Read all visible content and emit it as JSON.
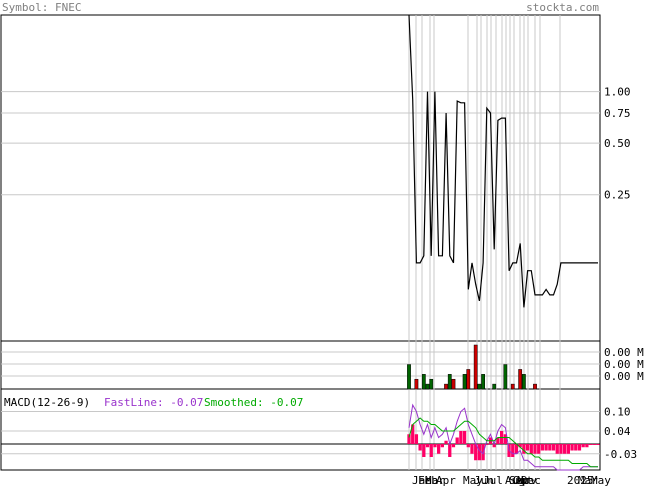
{
  "header": {
    "symbol_label": "Symbol: FNEC",
    "site": "stockta.com"
  },
  "colors": {
    "header_text": "#7f7f7f",
    "price_line": "#000000",
    "grid": "#c8c8c8",
    "frame": "#000000",
    "vol_up": "#006400",
    "vol_down": "#cc0000",
    "macd_fast": "#9933cc",
    "macd_smooth": "#00aa00",
    "macd_hist": "#ff0066",
    "axis_text": "#000000"
  },
  "chart_data": [
    {
      "type": "line",
      "panel": "price",
      "scale": "log",
      "ylim": [
        0.035,
        2.8
      ],
      "y_ticks": [
        1.0,
        0.75,
        0.5,
        0.25
      ],
      "y_tick_labels": [
        "1.00",
        "0.75",
        "0.50",
        "0.25"
      ],
      "x_tick_labels": [
        "Jan",
        "Feb",
        "Mar",
        "Apr",
        "May",
        "Jun",
        "Jul",
        "Aug",
        "Sep",
        "Oct",
        "Nov",
        "Dec",
        "2025",
        "Mar",
        "May"
      ],
      "x": [
        0,
        1,
        2,
        3,
        4,
        5,
        6,
        7,
        8,
        9,
        10,
        11,
        12,
        13,
        14,
        15,
        16,
        17,
        18,
        19,
        20,
        21,
        22,
        23,
        24,
        25,
        26,
        27,
        28,
        29,
        30,
        31,
        32,
        33,
        34,
        35,
        36,
        37,
        38,
        39,
        40,
        41,
        42,
        43,
        44,
        45,
        46,
        47,
        48,
        49,
        50,
        51
      ],
      "values": [
        2.8,
        0.9,
        0.1,
        0.1,
        0.11,
        1.0,
        0.11,
        1.0,
        0.11,
        0.11,
        0.75,
        0.11,
        0.1,
        0.88,
        0.86,
        0.86,
        0.07,
        0.1,
        0.075,
        0.06,
        0.1,
        0.8,
        0.75,
        0.12,
        0.68,
        0.7,
        0.7,
        0.09,
        0.1,
        0.1,
        0.13,
        0.055,
        0.09,
        0.09,
        0.065,
        0.065,
        0.065,
        0.07,
        0.065,
        0.065,
        0.075,
        0.1,
        0.1,
        0.1,
        0.1,
        0.1,
        0.1,
        0.1,
        0.1,
        0.1,
        0.1,
        0.1
      ]
    },
    {
      "type": "bar",
      "panel": "volume",
      "y_tick_labels": [
        "0.00 M",
        "0.00 M",
        "0.00 M"
      ],
      "values": [
        5,
        0,
        2,
        0,
        3,
        1,
        2,
        0,
        0,
        0,
        1,
        3,
        2,
        0,
        0,
        3,
        4,
        0,
        9,
        1,
        3,
        0,
        0,
        1,
        0,
        0,
        5,
        0,
        1,
        0,
        4,
        3,
        0,
        0,
        1,
        0,
        0,
        0,
        0,
        0,
        0,
        0,
        0,
        0,
        0,
        0,
        0,
        0,
        0,
        0,
        0,
        0
      ],
      "direction": [
        "up",
        "up",
        "down",
        "down",
        "up",
        "up",
        "up",
        "down",
        "down",
        "down",
        "down",
        "up",
        "down",
        "down",
        "down",
        "up",
        "down",
        "down",
        "down",
        "up",
        "up",
        "down",
        "down",
        "up",
        "up",
        "up",
        "up",
        "down",
        "down",
        "up",
        "down",
        "up",
        "up",
        "down",
        "down",
        "up",
        "up",
        "up",
        "up",
        "up",
        "up",
        "up",
        "up",
        "up",
        "up",
        "up",
        "up",
        "up",
        "up",
        "up",
        "up",
        "up"
      ]
    },
    {
      "type": "line",
      "panel": "macd",
      "title": "MACD(12-26-9)",
      "fast_label": "FastLine: -0.07",
      "smooth_label": "Smoothed: -0.07",
      "ylim": [
        -0.08,
        0.16
      ],
      "y_ticks": [
        0.1,
        0.04,
        -0.03
      ],
      "y_tick_labels": [
        "0.10",
        "0.04",
        "-0.03"
      ],
      "series": [
        {
          "name": "FastLine",
          "values": [
            0.05,
            0.12,
            0.1,
            0.06,
            0.03,
            0.06,
            0.02,
            0.05,
            0.02,
            0.03,
            0.05,
            0.0,
            0.03,
            0.07,
            0.1,
            0.11,
            0.06,
            0.03,
            0.0,
            -0.02,
            -0.03,
            0.01,
            0.03,
            0.0,
            0.04,
            0.06,
            0.05,
            -0.02,
            -0.03,
            -0.03,
            -0.02,
            -0.05,
            -0.05,
            -0.06,
            -0.07,
            -0.07,
            -0.07,
            -0.07,
            -0.07,
            -0.07,
            -0.08,
            -0.08,
            -0.08,
            -0.08,
            -0.08,
            -0.08,
            -0.08,
            -0.07,
            -0.07,
            -0.07,
            -0.07,
            -0.07
          ]
        },
        {
          "name": "Smoothed",
          "values": [
            0.02,
            0.06,
            0.07,
            0.08,
            0.07,
            0.07,
            0.06,
            0.06,
            0.05,
            0.04,
            0.04,
            0.04,
            0.04,
            0.05,
            0.06,
            0.07,
            0.07,
            0.06,
            0.05,
            0.03,
            0.02,
            0.01,
            0.01,
            0.01,
            0.02,
            0.02,
            0.02,
            0.02,
            0.01,
            0.0,
            -0.01,
            -0.02,
            -0.03,
            -0.03,
            -0.04,
            -0.04,
            -0.05,
            -0.05,
            -0.05,
            -0.05,
            -0.05,
            -0.05,
            -0.05,
            -0.05,
            -0.06,
            -0.06,
            -0.06,
            -0.06,
            -0.06,
            -0.07,
            -0.07,
            -0.07
          ]
        }
      ]
    }
  ]
}
